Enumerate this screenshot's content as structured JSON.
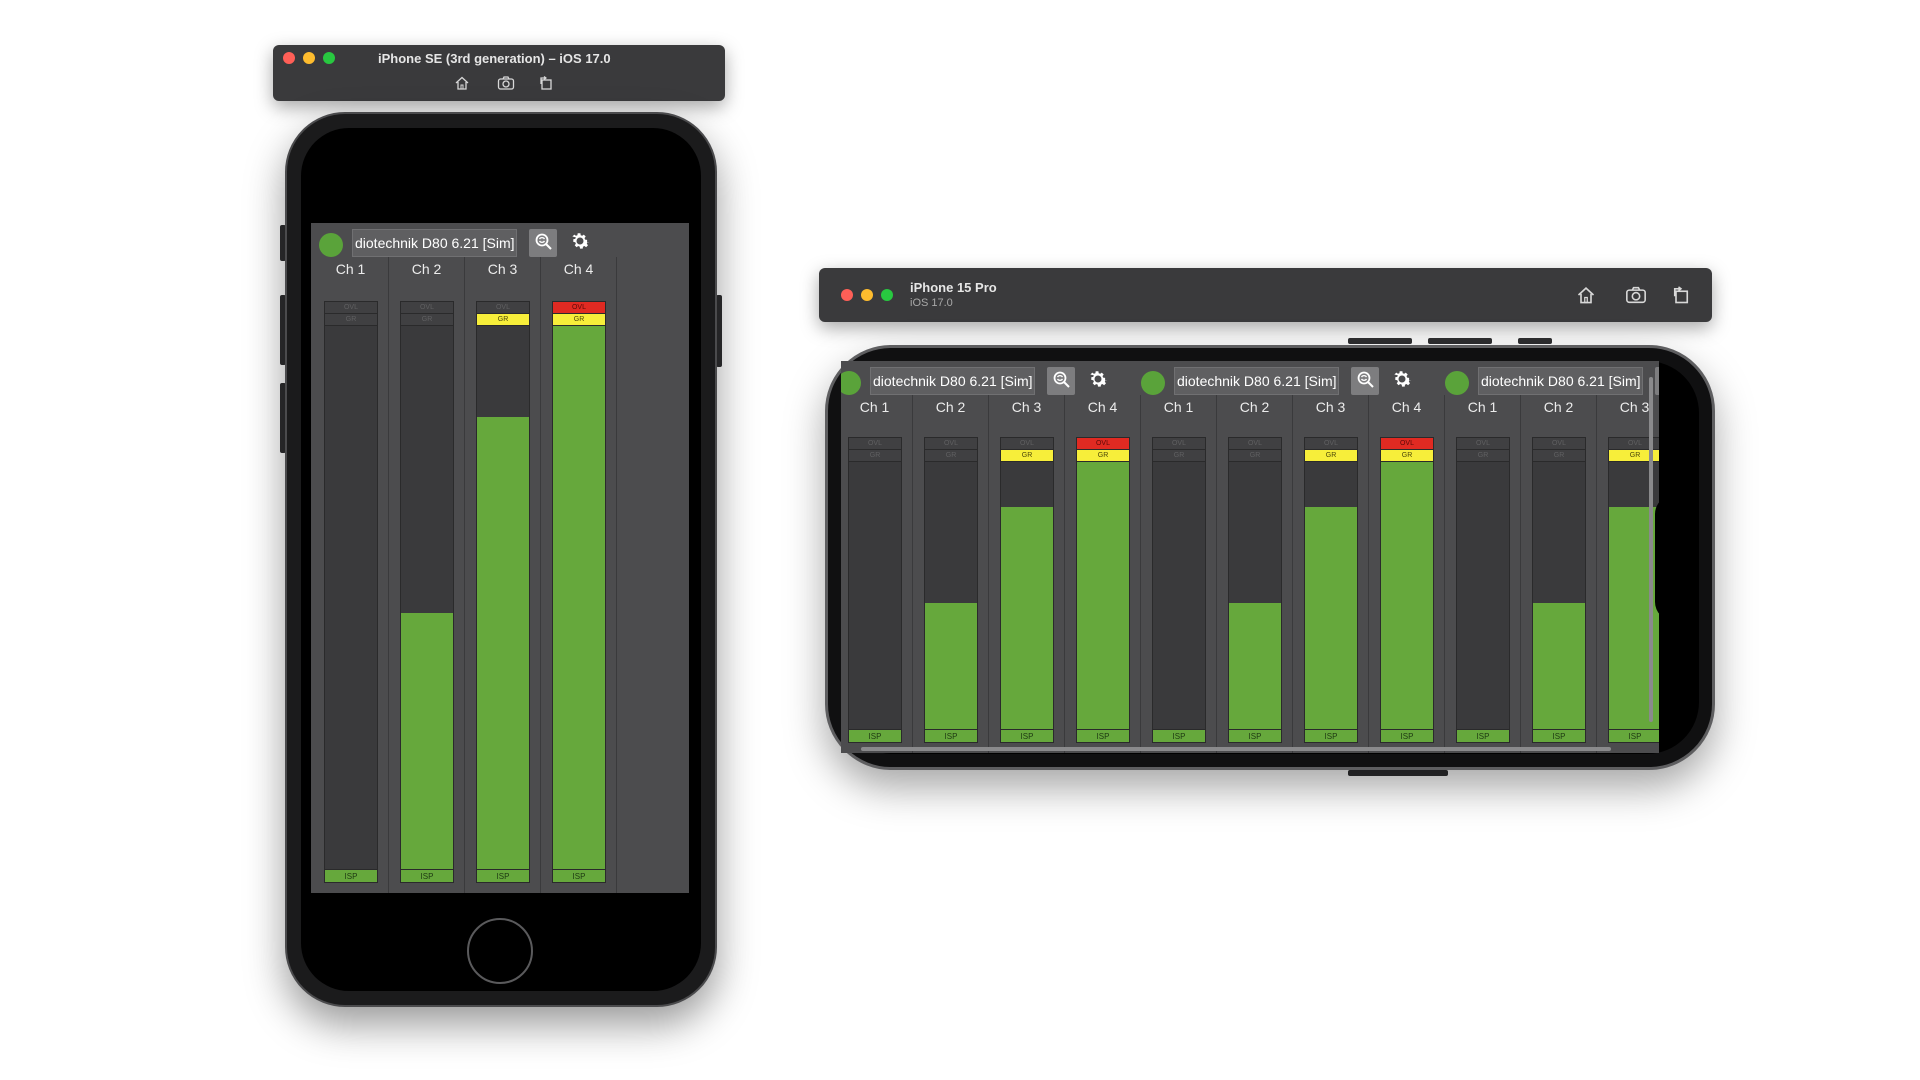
{
  "simulators": {
    "se": {
      "title": "iPhone SE (3rd generation) – iOS 17.0",
      "toolbar_icons": [
        "home-icon",
        "screenshot-icon",
        "rotate-icon"
      ]
    },
    "pro": {
      "title": "iPhone 15 Pro",
      "subtitle": "iOS 17.0",
      "toolbar_icons": [
        "home-icon",
        "screenshot-icon",
        "rotate-icon"
      ]
    }
  },
  "app": {
    "device_name": "diotechnik D80 6.21 [Sim]",
    "status_color": "#5aa33a",
    "colors": {
      "meter_green": "#66a83c",
      "ovl_red": "#e02a22",
      "gr_yellow": "#f7ee3a",
      "background": "#4c4c4e"
    },
    "indicator_labels": {
      "ovl": "OVL",
      "gr": "GR",
      "isp": "ISP"
    },
    "channels": [
      {
        "label": "Ch 1",
        "level": 0.0,
        "ovl": false,
        "gr": false
      },
      {
        "label": "Ch 2",
        "level": 0.47,
        "ovl": false,
        "gr": false
      },
      {
        "label": "Ch 3",
        "level": 0.83,
        "ovl": false,
        "gr": true
      },
      {
        "label": "Ch 4",
        "level": 1.0,
        "ovl": true,
        "gr": true
      }
    ]
  },
  "landscape_groups": 3
}
